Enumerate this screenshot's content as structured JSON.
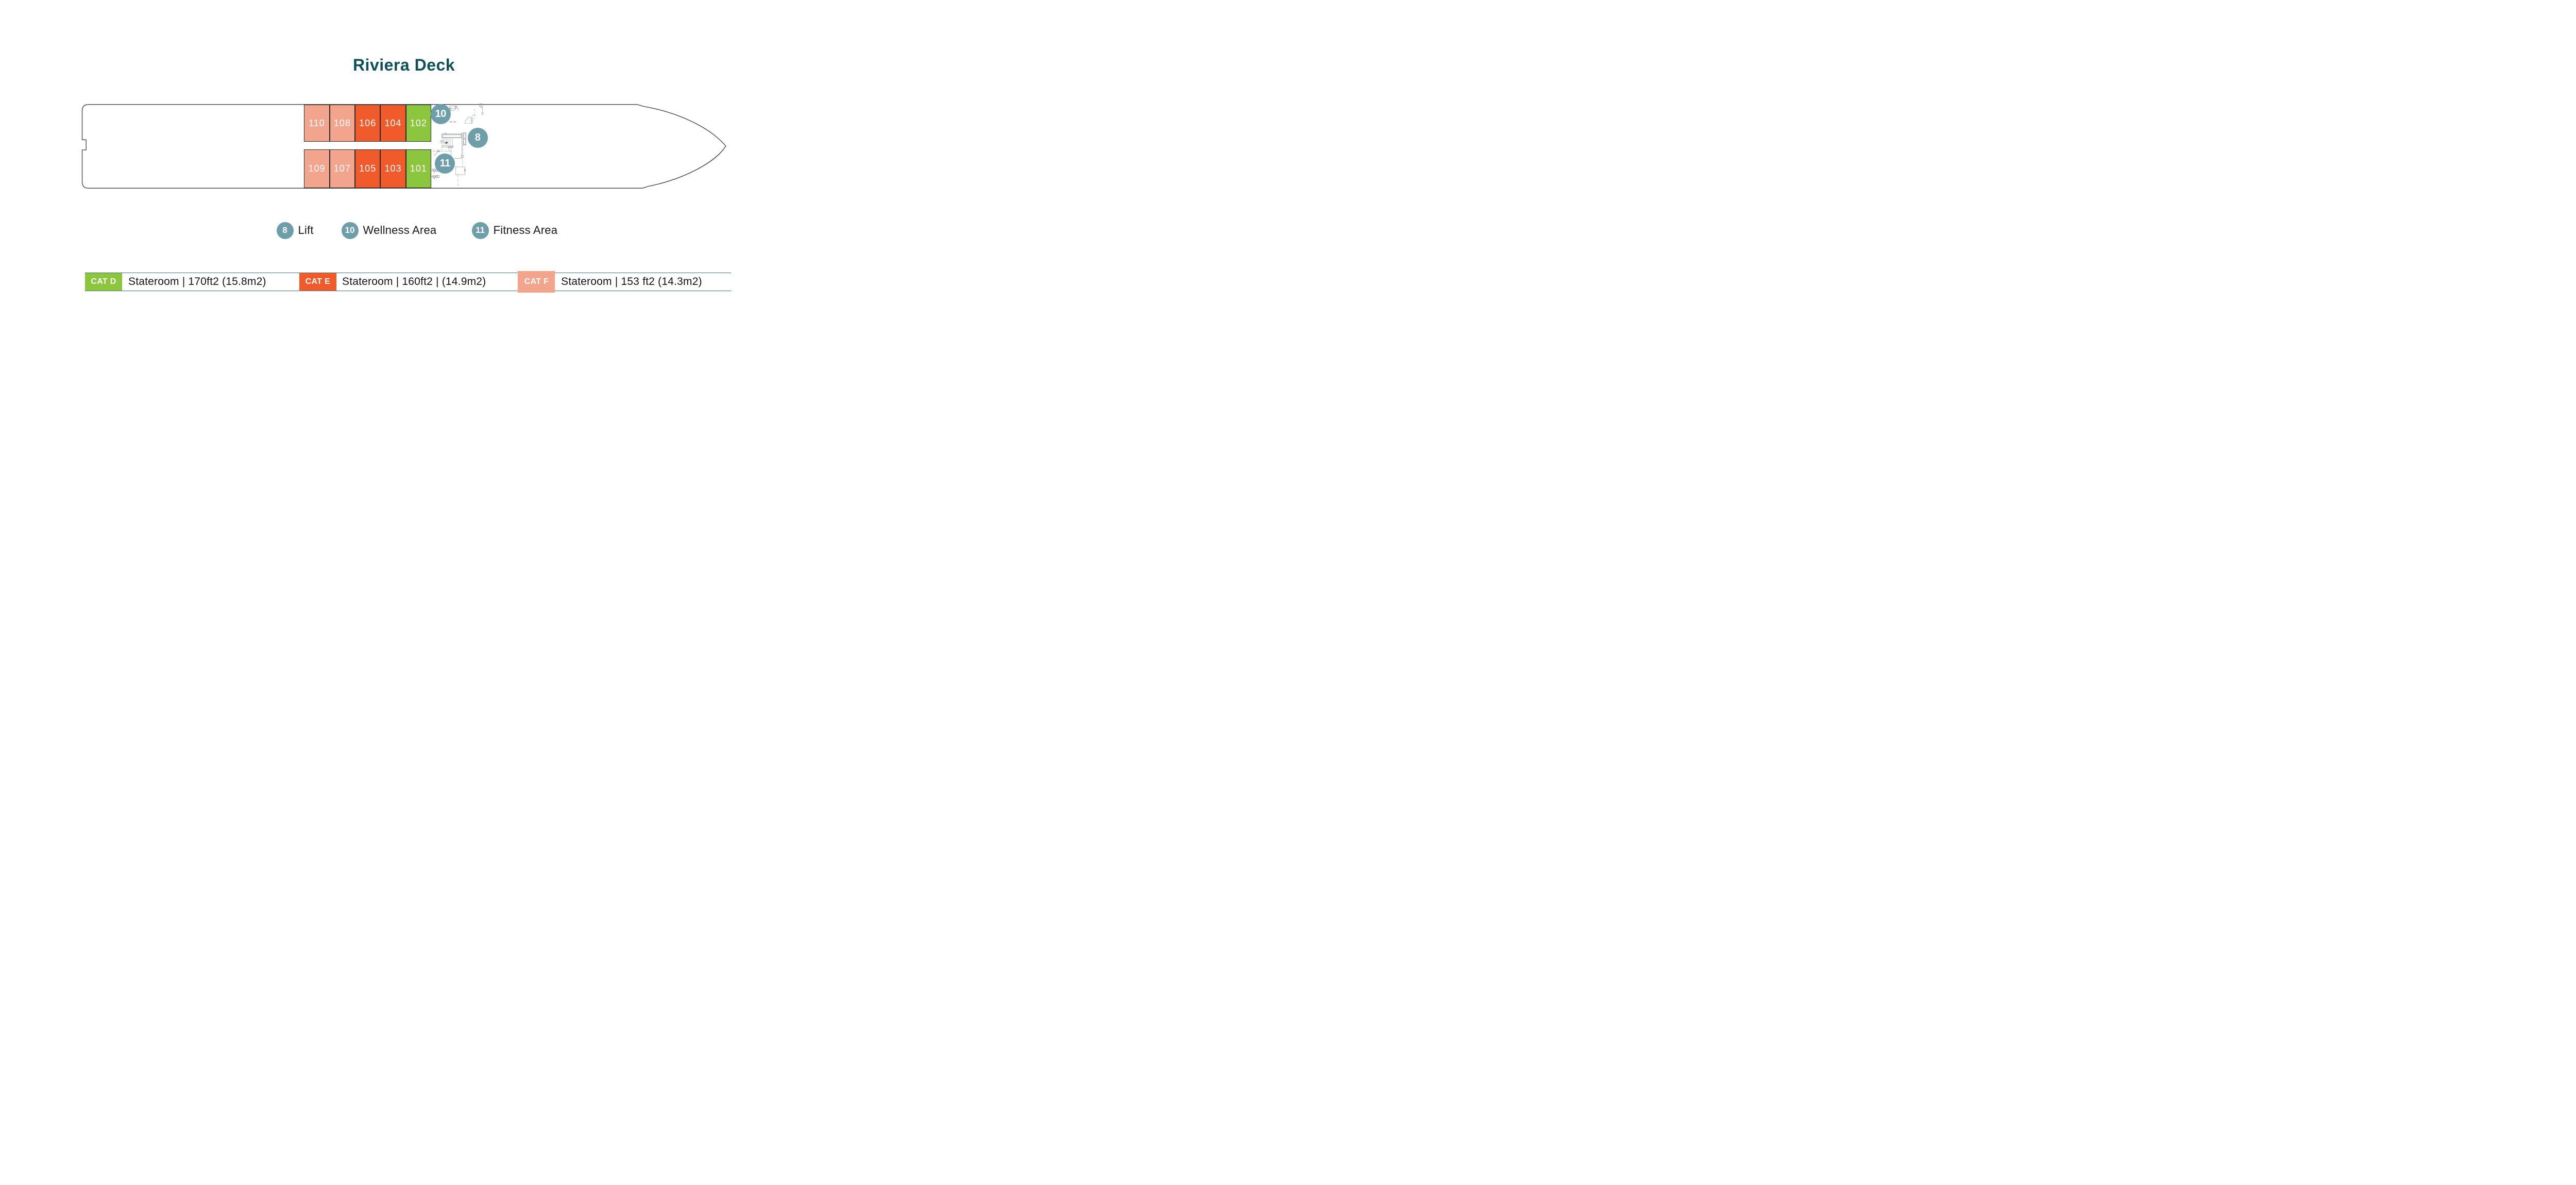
{
  "page": {
    "title": "Riviera Deck"
  },
  "colors": {
    "title_text": "#0E4F59",
    "marker_badge": "#6D9EA9",
    "cat": {
      "D": "#8CC63F",
      "E": "#F15B2B",
      "F": "#F3A48D"
    }
  },
  "deck_plan": {
    "cabin_rows": [
      {
        "side": "top",
        "cabins": [
          {
            "number": "110",
            "cat": "F"
          },
          {
            "number": "108",
            "cat": "F"
          },
          {
            "number": "106",
            "cat": "E"
          },
          {
            "number": "104",
            "cat": "E"
          },
          {
            "number": "102",
            "cat": "D"
          }
        ]
      },
      {
        "side": "bottom",
        "cabins": [
          {
            "number": "109",
            "cat": "F"
          },
          {
            "number": "107",
            "cat": "F"
          },
          {
            "number": "105",
            "cat": "E"
          },
          {
            "number": "103",
            "cat": "E"
          },
          {
            "number": "101",
            "cat": "D"
          }
        ]
      }
    ],
    "markers": [
      {
        "id": "10",
        "meaning": "Wellness Area"
      },
      {
        "id": "8",
        "meaning": "Lift"
      },
      {
        "id": "11",
        "meaning": "Fitness Area"
      }
    ],
    "stairs_label": "UP"
  },
  "area_legend": [
    {
      "badge": "8",
      "label": "Lift"
    },
    {
      "badge": "10",
      "label": "Wellness Area"
    },
    {
      "badge": "11",
      "label": "Fitness Area"
    }
  ],
  "category_legend": [
    {
      "code": "CAT D",
      "cat": "D",
      "description": "Stateroom | 170ft2 (15.8m2)"
    },
    {
      "code": "CAT E",
      "cat": "E",
      "description": "Stateroom | 160ft2 | (14.9m2)"
    },
    {
      "code": "CAT F",
      "cat": "F",
      "description": "Stateroom | 153 ft2 (14.3m2)"
    }
  ]
}
